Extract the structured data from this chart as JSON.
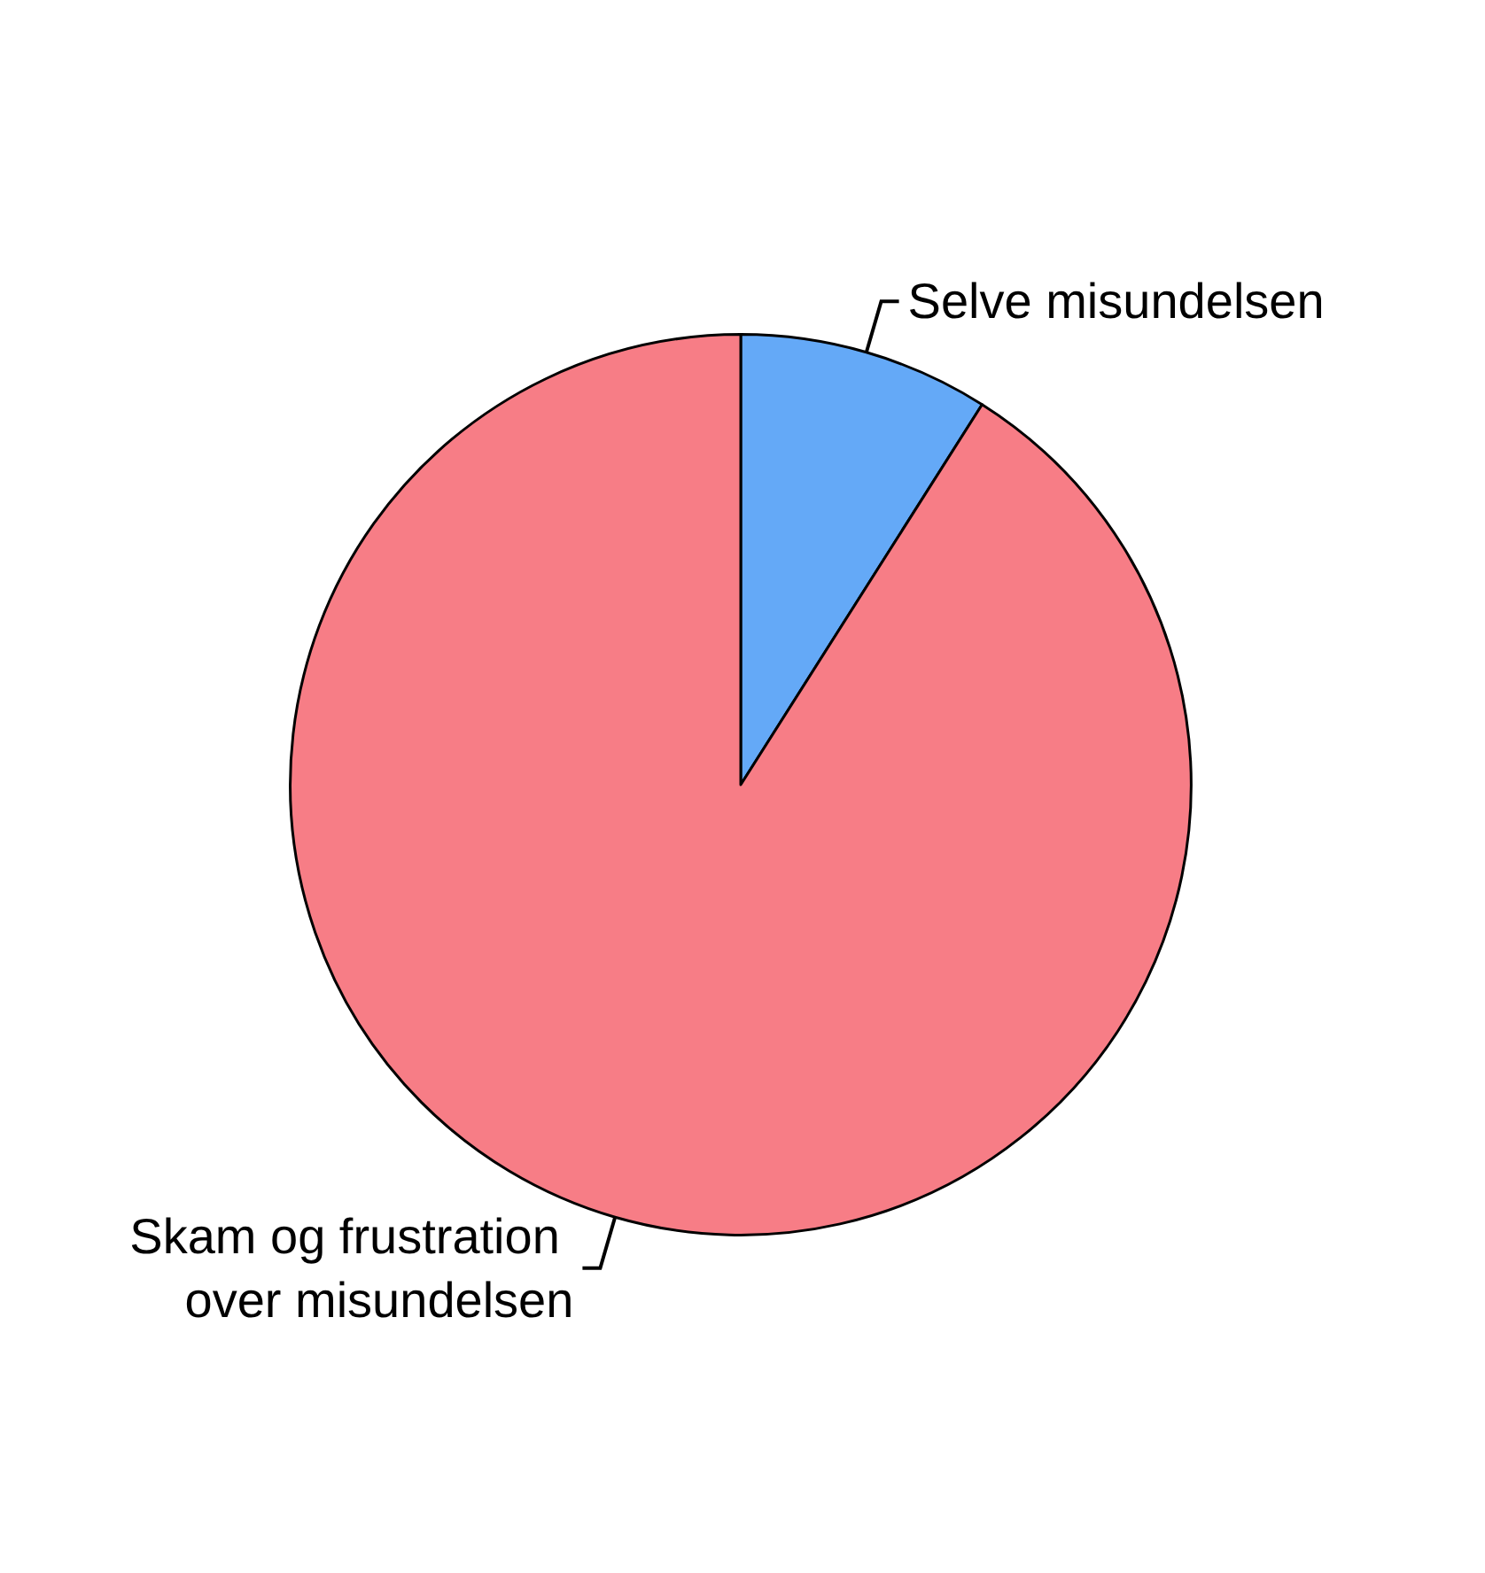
{
  "chart_data": {
    "type": "pie",
    "categories": [
      "Selve misundelsen",
      "Skam og frustration over misundelsen"
    ],
    "values": [
      9,
      91
    ],
    "colors": [
      "#64a9f7",
      "#f77d86"
    ]
  }
}
